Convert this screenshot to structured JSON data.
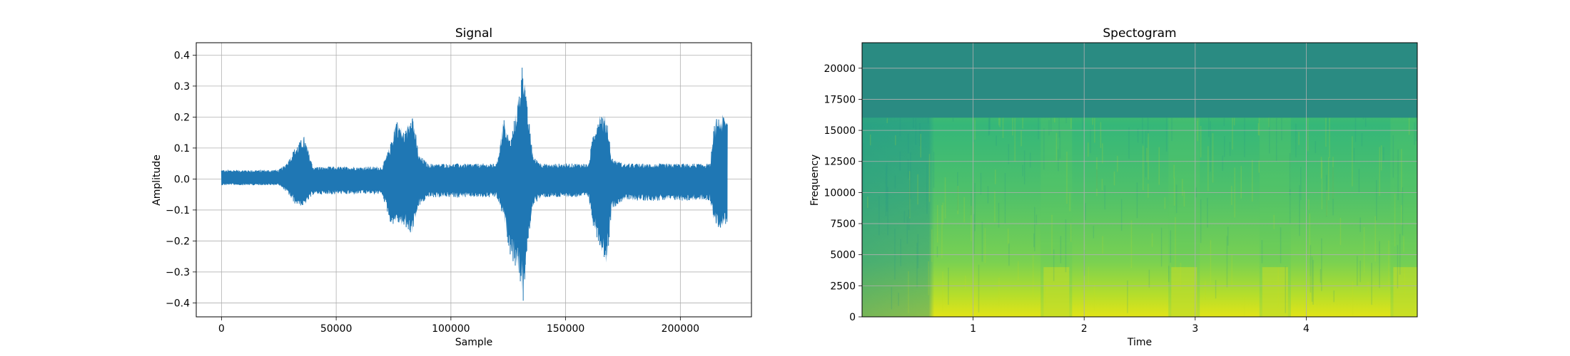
{
  "figure": {
    "background": "#ffffff"
  },
  "chart_data": [
    {
      "type": "line",
      "title": "Signal",
      "xlabel": "Sample",
      "ylabel": "Amplitude",
      "xlim": [
        -11000,
        231000
      ],
      "ylim": [
        -0.445,
        0.44
      ],
      "xticks": [
        0,
        50000,
        100000,
        150000,
        200000
      ],
      "xtick_labels": [
        "0",
        "50000",
        "100000",
        "150000",
        "200000"
      ],
      "yticks": [
        -0.4,
        -0.3,
        -0.2,
        -0.1,
        0.0,
        0.1,
        0.2,
        0.3,
        0.4
      ],
      "ytick_labels": [
        "−0.4",
        "−0.3",
        "−0.2",
        "−0.1",
        "0.0",
        "0.1",
        "0.2",
        "0.3",
        "0.4"
      ],
      "grid": true,
      "series": [
        {
          "color": "#1f77b4",
          "x_range": [
            0,
            220500
          ],
          "envelope": {
            "x": [
              0,
              10000,
              25000,
              28000,
              32000,
              36000,
              40000,
              50000,
              60000,
              70000,
              74000,
              76000,
              80000,
              83000,
              86000,
              90000,
              100000,
              110000,
              120000,
              123000,
              126000,
              130000,
              131500,
              133000,
              136000,
              140000,
              150000,
              160000,
              162000,
              165000,
              168000,
              170000,
              175000,
              185000,
              195000,
              205000,
              213000,
              215000,
              218000,
              220500
            ],
            "upper": [
              0.03,
              0.03,
              0.03,
              0.05,
              0.1,
              0.14,
              0.04,
              0.04,
              0.04,
              0.04,
              0.12,
              0.2,
              0.15,
              0.23,
              0.08,
              0.05,
              0.05,
              0.05,
              0.05,
              0.2,
              0.12,
              0.3,
              0.4,
              0.25,
              0.07,
              0.05,
              0.05,
              0.05,
              0.15,
              0.22,
              0.2,
              0.07,
              0.05,
              0.05,
              0.05,
              0.05,
              0.05,
              0.19,
              0.21,
              0.2
            ],
            "lower": [
              -0.02,
              -0.02,
              -0.02,
              -0.04,
              -0.08,
              -0.09,
              -0.05,
              -0.05,
              -0.05,
              -0.05,
              -0.15,
              -0.14,
              -0.16,
              -0.18,
              -0.09,
              -0.06,
              -0.06,
              -0.06,
              -0.06,
              -0.13,
              -0.25,
              -0.32,
              -0.41,
              -0.25,
              -0.08,
              -0.06,
              -0.06,
              -0.06,
              -0.15,
              -0.22,
              -0.28,
              -0.1,
              -0.07,
              -0.07,
              -0.07,
              -0.07,
              -0.07,
              -0.15,
              -0.16,
              -0.14
            ]
          }
        }
      ]
    },
    {
      "type": "heatmap",
      "title": "Spectogram",
      "xlabel": "Time",
      "ylabel": "Frequency",
      "xlim": [
        0.0,
        5.0
      ],
      "ylim": [
        0,
        22050
      ],
      "xticks": [
        1,
        2,
        3,
        4
      ],
      "xtick_labels": [
        "1",
        "2",
        "3",
        "4"
      ],
      "yticks": [
        0,
        2500,
        5000,
        7500,
        10000,
        12500,
        15000,
        17500,
        20000
      ],
      "ytick_labels": [
        "0",
        "2500",
        "5000",
        "7500",
        "10000",
        "12500",
        "15000",
        "17500",
        "20000"
      ],
      "grid": true,
      "colormap": "viridis",
      "cutoff_frequency": 16000,
      "loud_time_regions": [
        1.75,
        2.9,
        3.72,
        4.9
      ],
      "colors": {
        "high_band": "#2a8b82",
        "low_band_dark": "#21918c",
        "mid": "#5ec962",
        "bright": "#c8e020",
        "brightest": "#e2e418"
      }
    }
  ]
}
